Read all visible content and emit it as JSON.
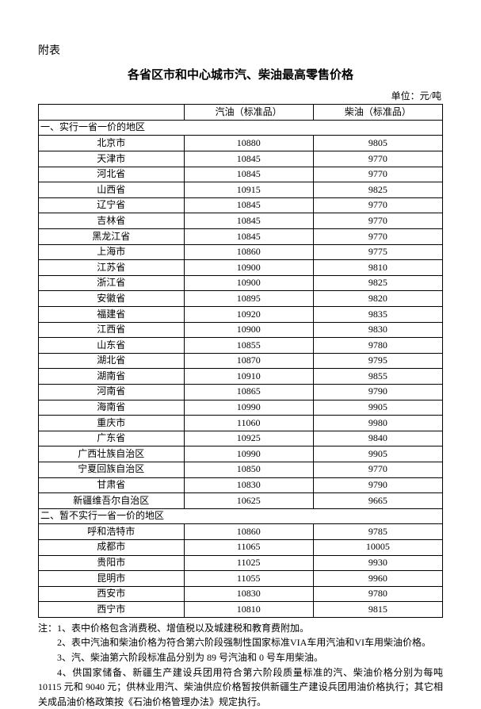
{
  "attachment_label": "附表",
  "title": "各省区市和中心城市汽、柴油最高零售价格",
  "unit_label": "单位：元/吨",
  "headers": {
    "region": "",
    "gasoline": "汽油（标准品）",
    "diesel": "柴油（标准品）"
  },
  "section1_label": "一、实行一省一价的地区",
  "section2_label": "二、暂不实行一省一价的地区",
  "section1_rows": [
    {
      "region": "北京市",
      "gas": "10880",
      "diesel": "9805"
    },
    {
      "region": "天津市",
      "gas": "10845",
      "diesel": "9770"
    },
    {
      "region": "河北省",
      "gas": "10845",
      "diesel": "9770"
    },
    {
      "region": "山西省",
      "gas": "10915",
      "diesel": "9825"
    },
    {
      "region": "辽宁省",
      "gas": "10845",
      "diesel": "9770"
    },
    {
      "region": "吉林省",
      "gas": "10845",
      "diesel": "9770"
    },
    {
      "region": "黑龙江省",
      "gas": "10845",
      "diesel": "9770"
    },
    {
      "region": "上海市",
      "gas": "10860",
      "diesel": "9775"
    },
    {
      "region": "江苏省",
      "gas": "10900",
      "diesel": "9810"
    },
    {
      "region": "浙江省",
      "gas": "10900",
      "diesel": "9825"
    },
    {
      "region": "安徽省",
      "gas": "10895",
      "diesel": "9820"
    },
    {
      "region": "福建省",
      "gas": "10920",
      "diesel": "9835"
    },
    {
      "region": "江西省",
      "gas": "10900",
      "diesel": "9830"
    },
    {
      "region": "山东省",
      "gas": "10855",
      "diesel": "9780"
    },
    {
      "region": "湖北省",
      "gas": "10870",
      "diesel": "9795"
    },
    {
      "region": "湖南省",
      "gas": "10910",
      "diesel": "9855"
    },
    {
      "region": "河南省",
      "gas": "10865",
      "diesel": "9790"
    },
    {
      "region": "海南省",
      "gas": "10990",
      "diesel": "9905"
    },
    {
      "region": "重庆市",
      "gas": "11060",
      "diesel": "9980"
    },
    {
      "region": "广东省",
      "gas": "10925",
      "diesel": "9840"
    },
    {
      "region": "广西壮族自治区",
      "gas": "10990",
      "diesel": "9905"
    },
    {
      "region": "宁夏回族自治区",
      "gas": "10850",
      "diesel": "9770"
    },
    {
      "region": "甘肃省",
      "gas": "10830",
      "diesel": "9790"
    },
    {
      "region": "新疆维吾尔自治区",
      "gas": "10625",
      "diesel": "9665"
    }
  ],
  "section2_rows": [
    {
      "region": "呼和浩特市",
      "gas": "10860",
      "diesel": "9785"
    },
    {
      "region": "成都市",
      "gas": "11065",
      "diesel": "10005"
    },
    {
      "region": "贵阳市",
      "gas": "11025",
      "diesel": "9930"
    },
    {
      "region": "昆明市",
      "gas": "11055",
      "diesel": "9960"
    },
    {
      "region": "西安市",
      "gas": "10830",
      "diesel": "9780"
    },
    {
      "region": "西宁市",
      "gas": "10810",
      "diesel": "9815"
    }
  ],
  "notes": {
    "n1_prefix": "注：",
    "n1": "1、表中价格包含消费税、增值税以及城建税和教育费附加。",
    "n2": "2、表中汽油和柴油价格为符合第六阶段强制性国家标准VIA车用汽油和VI车用柴油价格。",
    "n3": "3、汽、柴油第六阶段标准品分别为 89 号汽油和 0 号车用柴油。",
    "n4": "4、供国家储备、新疆生产建设兵团用符合第六阶段质量标准的汽、柴油价格分别为每吨 10115 元和 9040 元；供林业用汽、柴油供应价格暂按供新疆生产建设兵团用油价格执行；其它相关成品油价格政策按《石油价格管理办法》规定执行。"
  },
  "colors": {
    "text": "#000000",
    "border": "#000000",
    "background": "#ffffff"
  }
}
